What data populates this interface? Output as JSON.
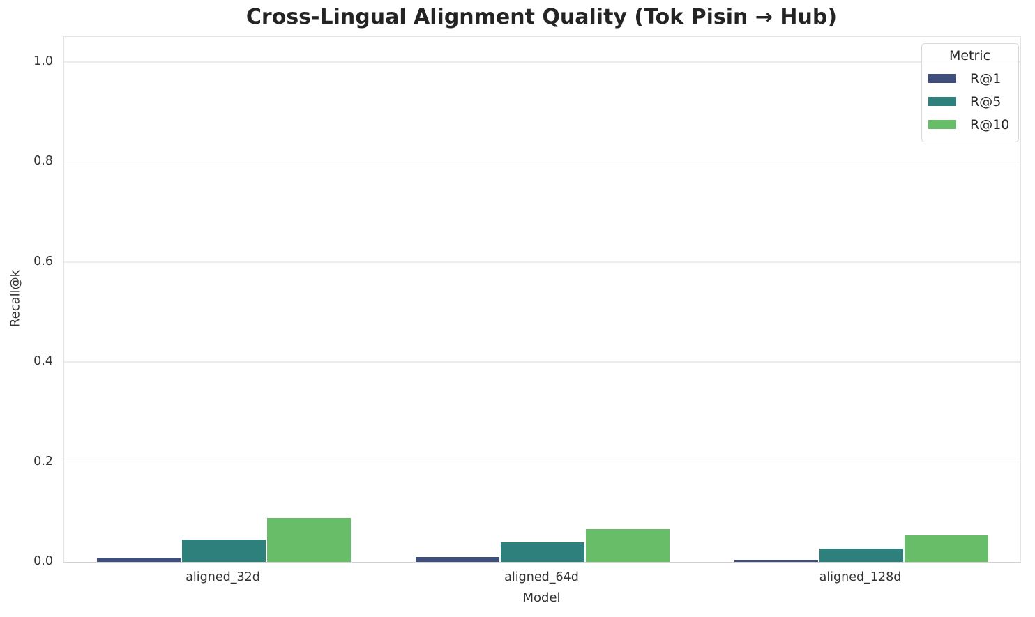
{
  "chart_data": {
    "type": "bar",
    "title": "Cross-Lingual Alignment Quality (Tok Pisin → Hub)",
    "xlabel": "Model",
    "ylabel": "Recall@k",
    "categories": [
      "aligned_32d",
      "aligned_64d",
      "aligned_128d"
    ],
    "series": [
      {
        "name": "R@1",
        "color": "#3f4e7a",
        "values": [
          0.008,
          0.01,
          0.004
        ]
      },
      {
        "name": "R@5",
        "color": "#2e807d",
        "values": [
          0.045,
          0.039,
          0.027
        ]
      },
      {
        "name": "R@10",
        "color": "#68bd68",
        "values": [
          0.088,
          0.065,
          0.053
        ]
      }
    ],
    "ylim": [
      0,
      1.05
    ],
    "yticks": [
      "0.0",
      "0.2",
      "0.4",
      "0.6",
      "0.8",
      "1.0"
    ],
    "grid": true,
    "legend": {
      "title": "Metric",
      "position": "upper right"
    }
  },
  "colors": {
    "grid": "#ececec",
    "spine": "#e3e3e3",
    "baseline": "#d2d2d2",
    "tick_text": "#333333",
    "title_text": "#242424"
  }
}
